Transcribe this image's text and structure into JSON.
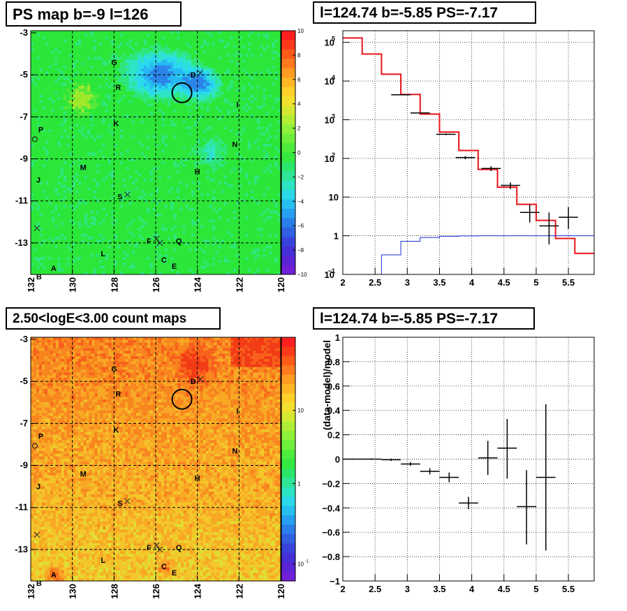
{
  "panels": {
    "ps_map": {
      "title": "PS map b=-9 l=126",
      "x_ticks": [
        "132",
        "130",
        "128",
        "126",
        "124",
        "122",
        "120"
      ],
      "y_ticks": [
        "-3",
        "-5",
        "-7",
        "-9",
        "-11",
        "-13"
      ],
      "colorbar_ticks": [
        "10",
        "8",
        "6",
        "4",
        "2",
        "0",
        "−2",
        "−4",
        "−6",
        "−8",
        "−10"
      ]
    },
    "count_map": {
      "title": "2.50<logE<3.00 count maps",
      "x_ticks": [
        "132",
        "130",
        "128",
        "126",
        "124",
        "122",
        "120"
      ],
      "y_ticks": [
        "-3",
        "-5",
        "-7",
        "-9",
        "-11",
        "-13"
      ],
      "colorbar_ticks": [
        "10",
        "1",
        "10"
      ],
      "colorbar_exp": "-1"
    },
    "spectrum": {
      "title": "l=124.74 b=-5.85 PS=-7.17"
    },
    "residual": {
      "title": "l=124.74 b=-5.85 PS=-7.17"
    }
  },
  "map_sources": [
    {
      "label": "G",
      "l": 128.0,
      "b": -4.4,
      "mark": "none"
    },
    {
      "label": "D",
      "l": 124.2,
      "b": -5.0,
      "mark": "x"
    },
    {
      "label": "R",
      "l": 127.8,
      "b": -5.6,
      "mark": "none"
    },
    {
      "label": "I",
      "l": 122.0,
      "b": -6.4,
      "mark": "none"
    },
    {
      "label": "K",
      "l": 127.9,
      "b": -7.3,
      "mark": "none"
    },
    {
      "label": "P",
      "l": 131.5,
      "b": -7.6,
      "mark": "o"
    },
    {
      "label": "N",
      "l": 122.2,
      "b": -8.3,
      "mark": "none"
    },
    {
      "label": "M",
      "l": 129.5,
      "b": -9.4,
      "mark": "none"
    },
    {
      "label": "H",
      "l": 124.0,
      "b": -9.6,
      "mark": "none"
    },
    {
      "label": "J",
      "l": 131.6,
      "b": -10.0,
      "mark": "none"
    },
    {
      "label": "S",
      "l": 127.7,
      "b": -10.8,
      "mark": "x"
    },
    {
      "label": "F",
      "l": 126.3,
      "b": -12.9,
      "mark": "x"
    },
    {
      "label": "Q",
      "l": 124.9,
      "b": -12.9,
      "mark": "none"
    },
    {
      "label": "L",
      "l": 128.5,
      "b": -13.5,
      "mark": "none"
    },
    {
      "label": "C",
      "l": 125.6,
      "b": -13.8,
      "mark": "none"
    },
    {
      "label": "E",
      "l": 125.1,
      "b": -14.1,
      "mark": "none"
    },
    {
      "label": "A",
      "l": 130.9,
      "b": -14.2,
      "mark": "none"
    },
    {
      "label": "B",
      "l": 131.6,
      "b": -14.6,
      "mark": "none"
    }
  ],
  "chart_data": [
    {
      "type": "heatmap",
      "title": "PS map b=-9 l=126",
      "xlim": [
        132,
        120
      ],
      "ylim": [
        -14.5,
        -2.9
      ],
      "zlim": [
        -10,
        10
      ],
      "grid": true,
      "target": {
        "l": 124.74,
        "b": -5.85
      }
    },
    {
      "type": "line",
      "title": "l=124.74 b=-5.85 PS=-7.17",
      "xlim": [
        2,
        5.9
      ],
      "ylim": [
        0.1,
        200000
      ],
      "yscale": "log",
      "grid": true,
      "y_tick_labels": [
        "10^-1",
        "1",
        "10",
        "10^2",
        "10^3",
        "10^4",
        "10^5"
      ],
      "x_tick_labels": [
        "2",
        "2.5",
        "3",
        "3.5",
        "4",
        "4.5",
        "5",
        "5.5"
      ],
      "series": [
        {
          "style": "data",
          "color": "#000000",
          "x": [
            2.9,
            3.2,
            3.6,
            3.9,
            4.3,
            4.6,
            4.9,
            5.2,
            5.5
          ],
          "y": [
            4400,
            1500,
            420,
            105,
            55,
            20,
            4,
            1.8,
            3
          ],
          "yerr_lo": [
            100,
            40,
            20,
            10,
            8,
            4,
            1.8,
            1.2,
            1.5
          ],
          "yerr_hi": [
            100,
            40,
            20,
            10,
            8,
            4,
            2.5,
            2.2,
            2.5
          ]
        },
        {
          "style": "step",
          "color": "#e8141a",
          "edges": [
            2.0,
            2.3,
            2.6,
            2.9,
            3.2,
            3.5,
            3.8,
            4.1,
            4.4,
            4.7,
            5.0,
            5.3,
            5.6,
            5.9
          ],
          "values": [
            130000,
            50000,
            15000,
            4500,
            1400,
            480,
            160,
            52,
            18,
            6.5,
            2.5,
            0.85,
            0.35
          ]
        },
        {
          "style": "step",
          "color": "#1a2fd0",
          "edges": [
            2.0,
            2.3,
            2.6,
            2.9,
            3.2,
            3.5,
            3.8,
            4.1,
            4.4,
            4.7,
            5.0,
            5.3,
            5.6,
            5.9
          ],
          "values": [
            0.05,
            0.05,
            0.32,
            0.72,
            0.9,
            0.97,
            0.99,
            1.0,
            1.0,
            1.0,
            1.0,
            1.0,
            1.0
          ]
        }
      ]
    },
    {
      "type": "heatmap",
      "title": "2.50<logE<3.00 count maps",
      "xlim": [
        132,
        120
      ],
      "ylim": [
        -14.5,
        -2.9
      ],
      "zscale": "log",
      "grid": true,
      "target": {
        "l": 124.74,
        "b": -5.85
      }
    },
    {
      "type": "scatter",
      "title": "l=124.74 b=-5.85 PS=-7.17",
      "ylabel": "(data-model)/model",
      "xlim": [
        2,
        5.9
      ],
      "ylim": [
        -1,
        1
      ],
      "grid": true,
      "x_tick_labels": [
        "2",
        "2.5",
        "3",
        "3.5",
        "4",
        "4.5",
        "5",
        "5.5"
      ],
      "y_tick_labels": [
        "−1",
        "−0.8",
        "−0.6",
        "−0.4",
        "−0.2",
        "0",
        "0.2",
        "0.4",
        "0.6",
        "0.8",
        "1"
      ],
      "points": {
        "x": [
          2.15,
          2.45,
          2.75,
          3.05,
          3.35,
          3.65,
          3.95,
          4.25,
          4.55,
          4.85,
          5.15
        ],
        "y": [
          0.0,
          0.0,
          -0.005,
          -0.04,
          -0.1,
          -0.15,
          -0.36,
          0.01,
          0.09,
          -0.39,
          -0.15
        ],
        "xerr": [
          0.15,
          0.15,
          0.15,
          0.15,
          0.15,
          0.15,
          0.15,
          0.15,
          0.15,
          0.15,
          0.15
        ],
        "yerr_lo": [
          0.004,
          0.006,
          0.01,
          0.015,
          0.025,
          0.04,
          0.05,
          0.14,
          0.25,
          0.31,
          0.6
        ],
        "yerr_hi": [
          0.004,
          0.006,
          0.01,
          0.015,
          0.025,
          0.04,
          0.05,
          0.14,
          0.24,
          0.3,
          0.6
        ]
      }
    }
  ]
}
